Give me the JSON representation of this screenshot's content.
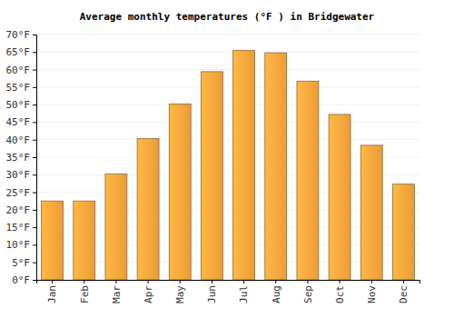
{
  "chart_data": {
    "type": "bar",
    "title": "Average monthly temperatures (°F ) in Bridgewater",
    "categories": [
      "Jan",
      "Feb",
      "Mar",
      "Apr",
      "May",
      "Jun",
      "Jul",
      "Aug",
      "Sep",
      "Oct",
      "Nov",
      "Dec"
    ],
    "values": [
      22.5,
      22.5,
      30.2,
      40.3,
      50.2,
      59.4,
      65.5,
      64.8,
      56.7,
      47.2,
      38.4,
      27.3
    ],
    "color": "#f9a33a",
    "ylim": [
      0,
      70
    ],
    "yticks": [
      {
        "value": 0,
        "label": "0°F"
      },
      {
        "value": 5,
        "label": "5°F"
      },
      {
        "value": 10,
        "label": "10°F"
      },
      {
        "value": 15,
        "label": "15°F"
      },
      {
        "value": 20,
        "label": "20°F"
      },
      {
        "value": 25,
        "label": "25°F"
      },
      {
        "value": 30,
        "label": "30°F"
      },
      {
        "value": 35,
        "label": "35°F"
      },
      {
        "value": 40,
        "label": "40°F"
      },
      {
        "value": 45,
        "label": "45°F"
      },
      {
        "value": 50,
        "label": "50°F"
      },
      {
        "value": 55,
        "label": "55°F"
      },
      {
        "value": 60,
        "label": "60°F"
      },
      {
        "value": 65,
        "label": "65°F"
      },
      {
        "value": 70,
        "label": "70°F"
      }
    ],
    "grid": true
  }
}
